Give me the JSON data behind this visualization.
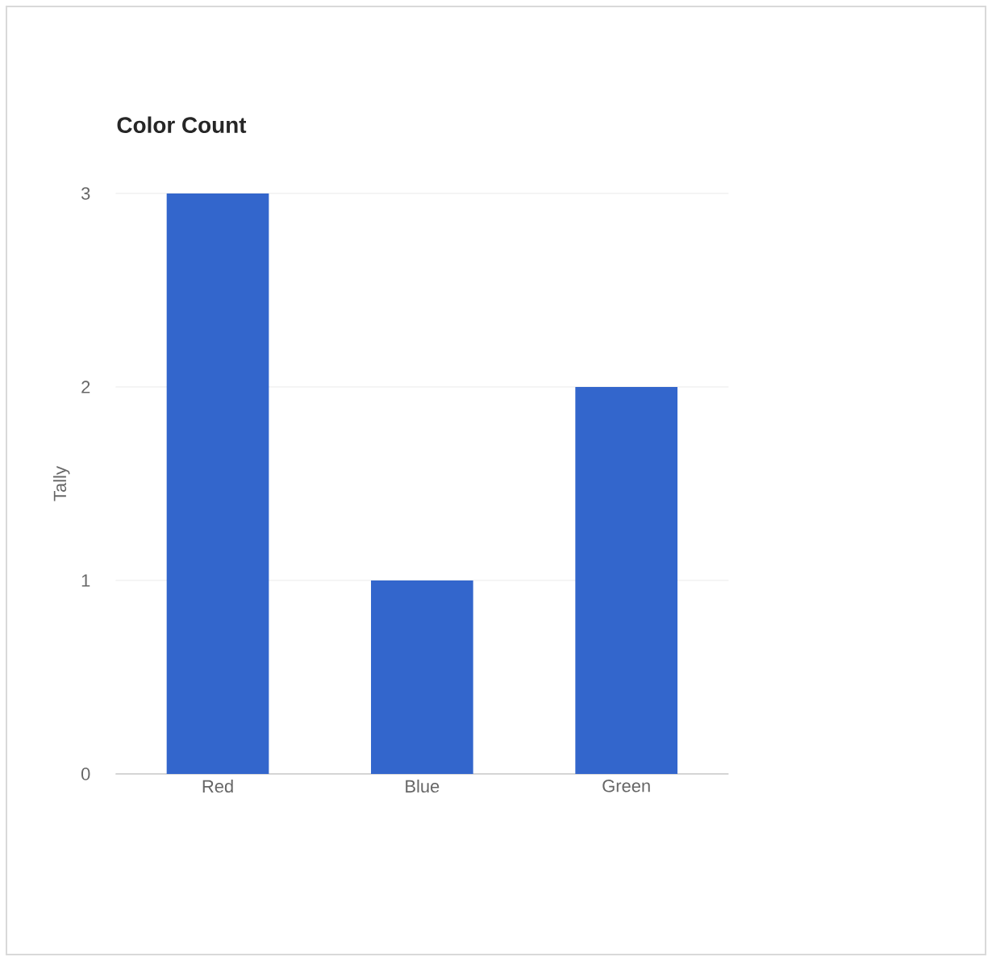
{
  "chart_data": {
    "type": "bar",
    "title": "Color Count",
    "ylabel": "Tally",
    "categories": [
      "Red",
      "Blue",
      "Green"
    ],
    "values": [
      3,
      1,
      2
    ],
    "color": "#3366cc",
    "ylim": [
      0,
      3
    ],
    "yticks": [
      0,
      1,
      2,
      3
    ],
    "grid": "y"
  }
}
